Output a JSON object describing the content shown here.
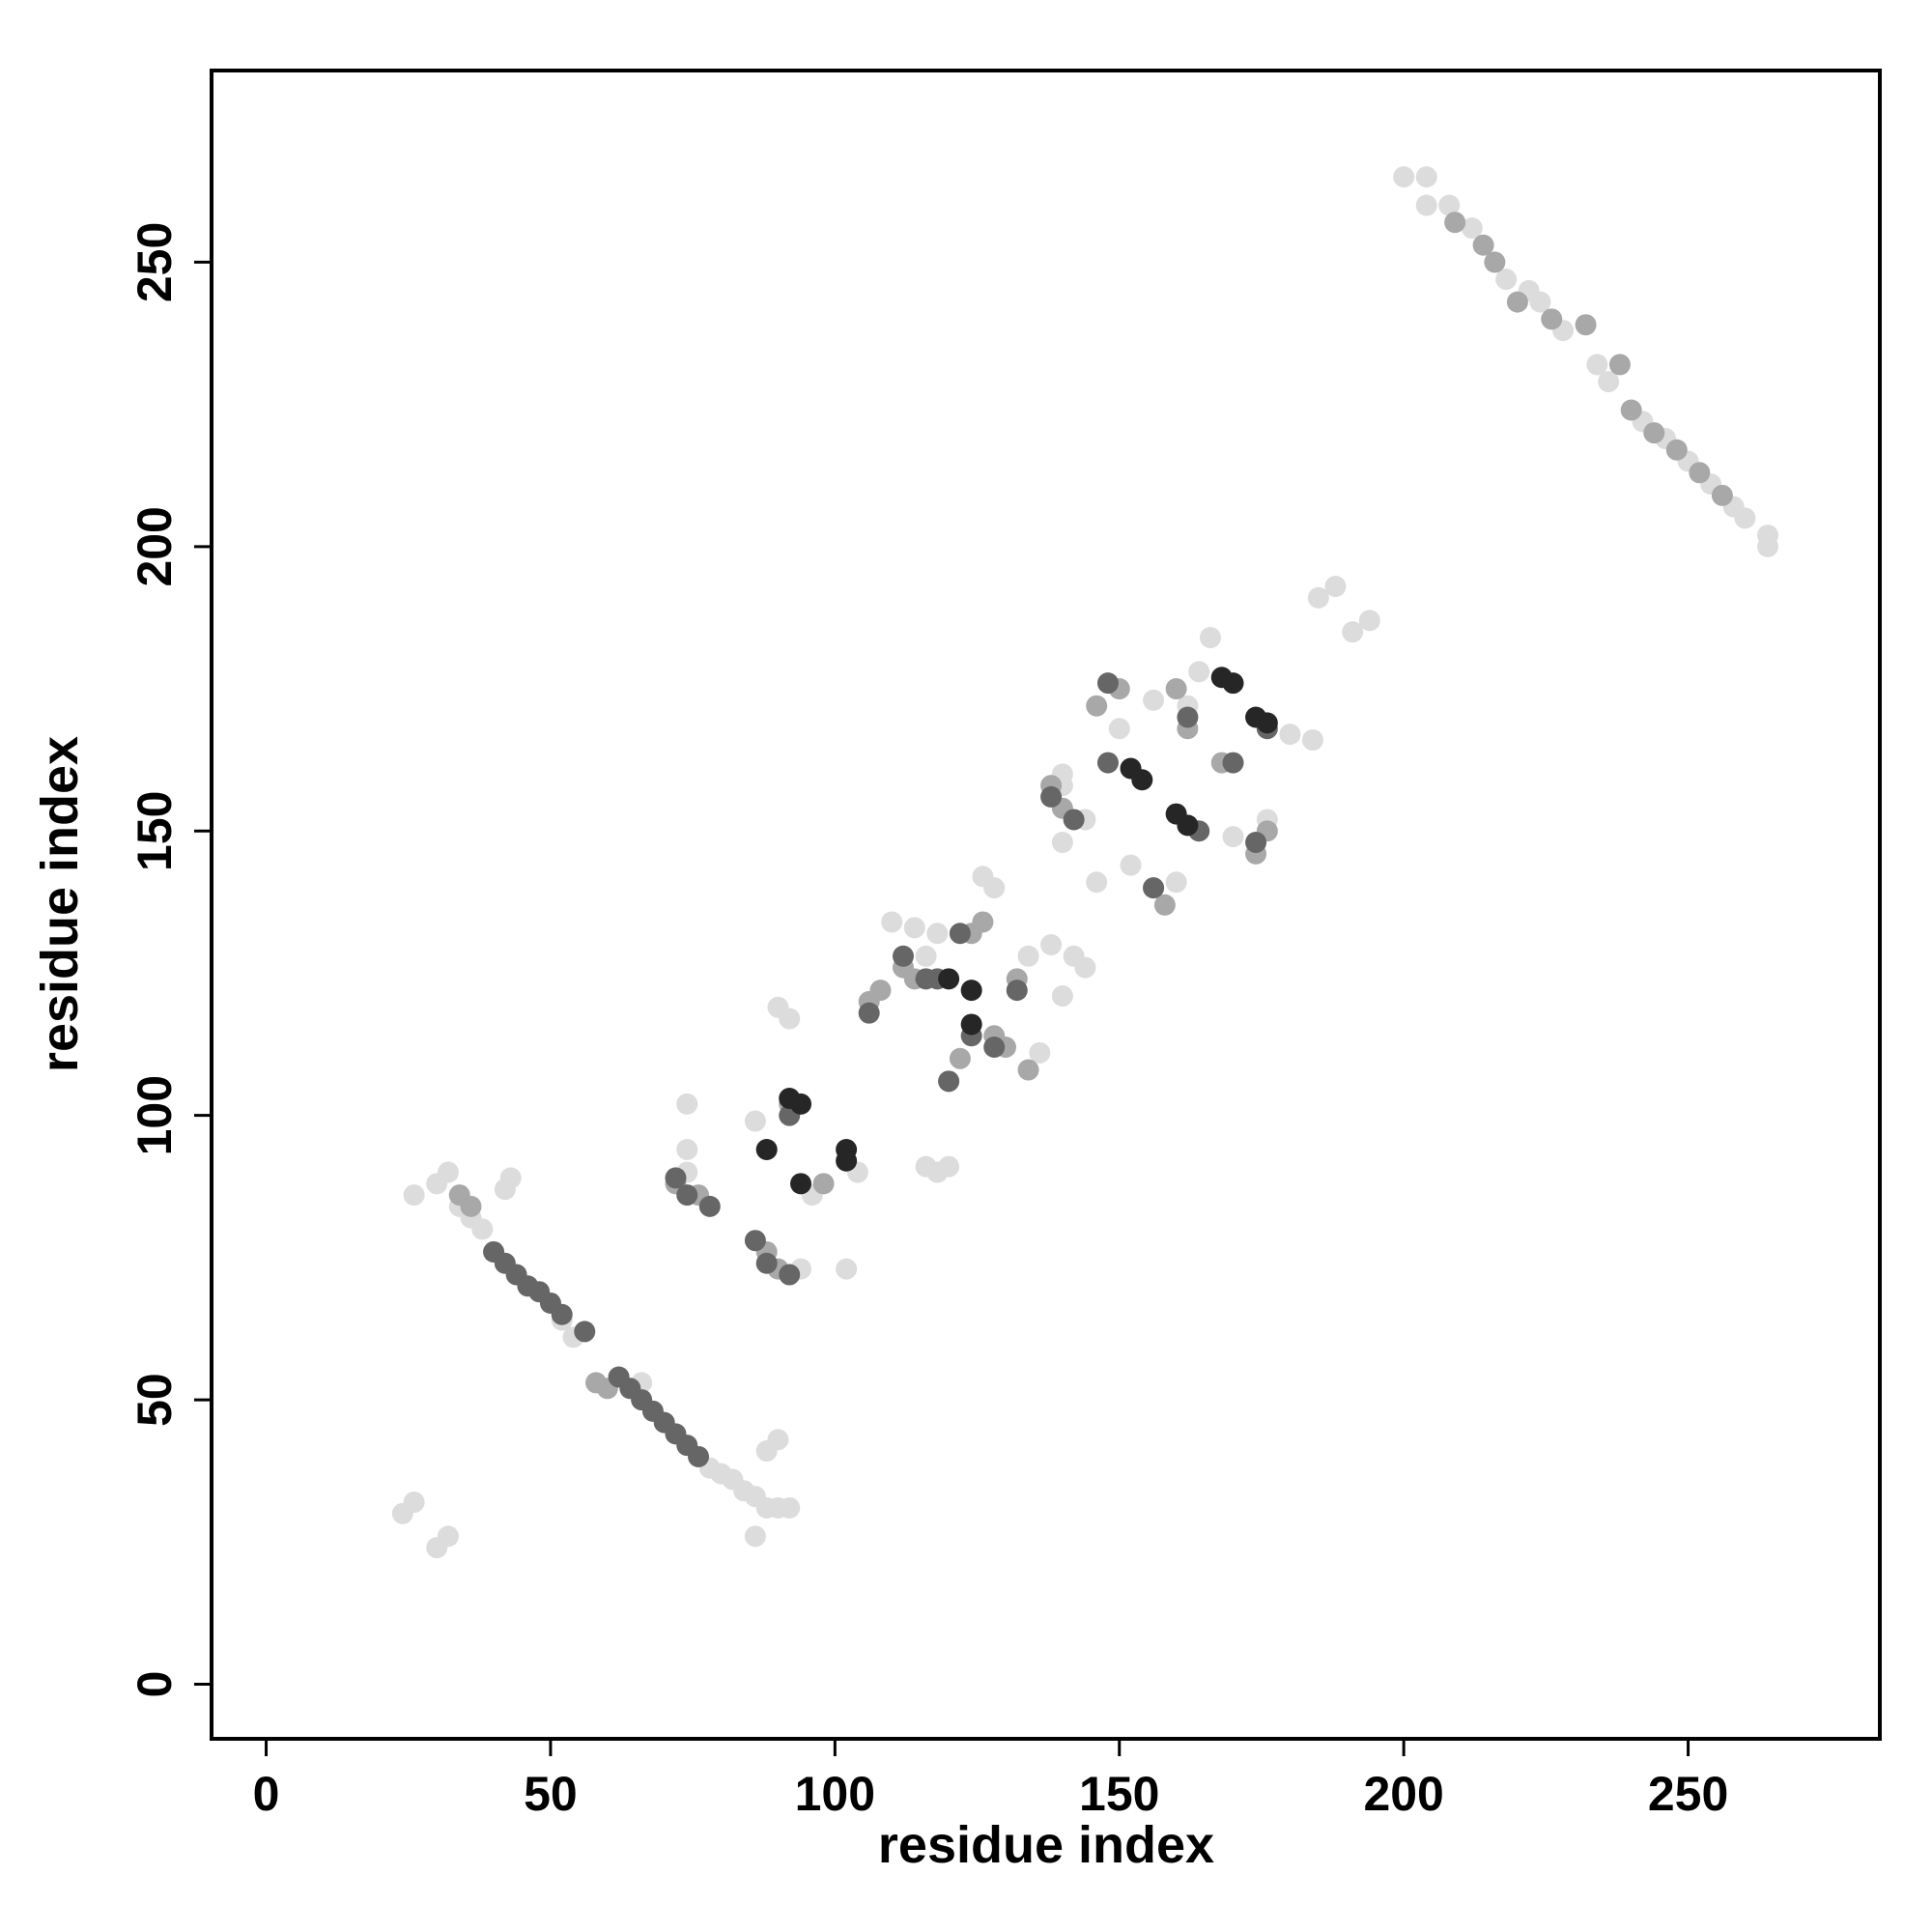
{
  "chart_data": {
    "type": "scatter",
    "x_label": "residue index",
    "y_label": "residue index",
    "xlim": [
      -9.6,
      283.7
    ],
    "ylim": [
      -9.6,
      283.7
    ],
    "xticks": [
      0,
      50,
      100,
      150,
      200,
      250
    ],
    "yticks": [
      0,
      50,
      100,
      150,
      200,
      250
    ],
    "series": [
      {
        "color": "#dcdcdc",
        "x": [
          200,
          204,
          204,
          208,
          212,
          218,
          222,
          224,
          228,
          234,
          236,
          242,
          246,
          250,
          254,
          258,
          260,
          264,
          264,
          185,
          188,
          191,
          194,
          26,
          30,
          32,
          34,
          36,
          38,
          43,
          42,
          54,
          52,
          66,
          78,
          80,
          82,
          84,
          86,
          88,
          90,
          92,
          86,
          88,
          90,
          24,
          26,
          30,
          32,
          90,
          92,
          86,
          88,
          74,
          74,
          74,
          96,
          94,
          102,
          104,
          110,
          114,
          118,
          116,
          120,
          116,
          118,
          126,
          128,
          134,
          138,
          142,
          144,
          140,
          136,
          144,
          140,
          140,
          146,
          152,
          160,
          166,
          164,
          162,
          156,
          150,
          170,
          176,
          180,
          184,
          140
        ],
        "values": [
          265,
          265,
          260,
          260,
          256,
          247,
          245,
          243,
          238,
          232,
          229,
          222,
          219,
          215,
          211,
          207,
          205,
          202,
          200,
          191,
          193,
          185,
          187,
          86,
          88,
          90,
          84,
          82,
          80,
          89,
          87,
          61,
          64,
          53,
          38,
          37,
          36,
          34,
          33,
          31,
          31,
          31,
          26,
          41,
          43,
          30,
          32,
          24,
          26,
          119,
          117,
          99,
          94,
          102,
          94,
          90,
          86,
          73,
          73,
          90,
          134,
          133,
          132,
          128,
          91,
          91,
          90,
          142,
          140,
          128,
          130,
          128,
          126,
          121,
          111,
          152,
          148,
          158,
          141,
          144,
          141,
          184,
          178,
          172,
          173,
          168,
          149,
          152,
          167,
          166,
          160
        ]
      },
      {
        "color": "#a8a8a8",
        "x": [
          209,
          214,
          216,
          220,
          226,
          232,
          238,
          240,
          244,
          248,
          252,
          256,
          34,
          36,
          58,
          60,
          88,
          90,
          72,
          76,
          106,
          108,
          112,
          114,
          124,
          126,
          132,
          134,
          120,
          122,
          128,
          138,
          140,
          150,
          146,
          158,
          156,
          174,
          176,
          162,
          162,
          168,
          160,
          92,
          98,
          130
        ],
        "values": [
          257,
          253,
          250,
          243,
          240,
          239,
          232,
          224,
          220,
          217,
          213,
          209,
          86,
          84,
          53,
          52,
          76,
          73,
          88,
          86,
          120,
          122,
          126,
          124,
          132,
          134,
          124,
          108,
          106,
          110,
          114,
          158,
          154,
          175,
          172,
          137,
          140,
          146,
          150,
          151,
          168,
          162,
          175,
          102,
          88,
          112
        ]
      },
      {
        "color": "#666666",
        "x": [
          40,
          42,
          44,
          46,
          48,
          50,
          52,
          56,
          62,
          64,
          66,
          68,
          70,
          72,
          74,
          76,
          86,
          88,
          92,
          72,
          74,
          78,
          106,
          112,
          116,
          118,
          120,
          124,
          128,
          132,
          138,
          142,
          148,
          148,
          156,
          164,
          174,
          170,
          176,
          162,
          122,
          92
        ],
        "values": [
          76,
          74,
          72,
          70,
          69,
          67,
          65,
          62,
          54,
          52,
          50,
          48,
          46,
          44,
          42,
          40,
          78,
          74,
          72,
          89,
          86,
          84,
          118,
          128,
          124,
          124,
          106,
          114,
          112,
          122,
          156,
          152,
          176,
          162,
          140,
          150,
          148,
          162,
          168,
          170,
          132,
          100
        ]
      },
      {
        "color": "#262626",
        "x": [
          88,
          94,
          94,
          92,
          102,
          102,
          124,
          124,
          152,
          154,
          160,
          162,
          168,
          170,
          176,
          174,
          120
        ],
        "values": [
          94,
          88,
          102,
          103,
          94,
          92,
          116,
          122,
          161,
          159,
          153,
          151,
          177,
          176,
          169,
          170,
          124
        ]
      }
    ]
  }
}
